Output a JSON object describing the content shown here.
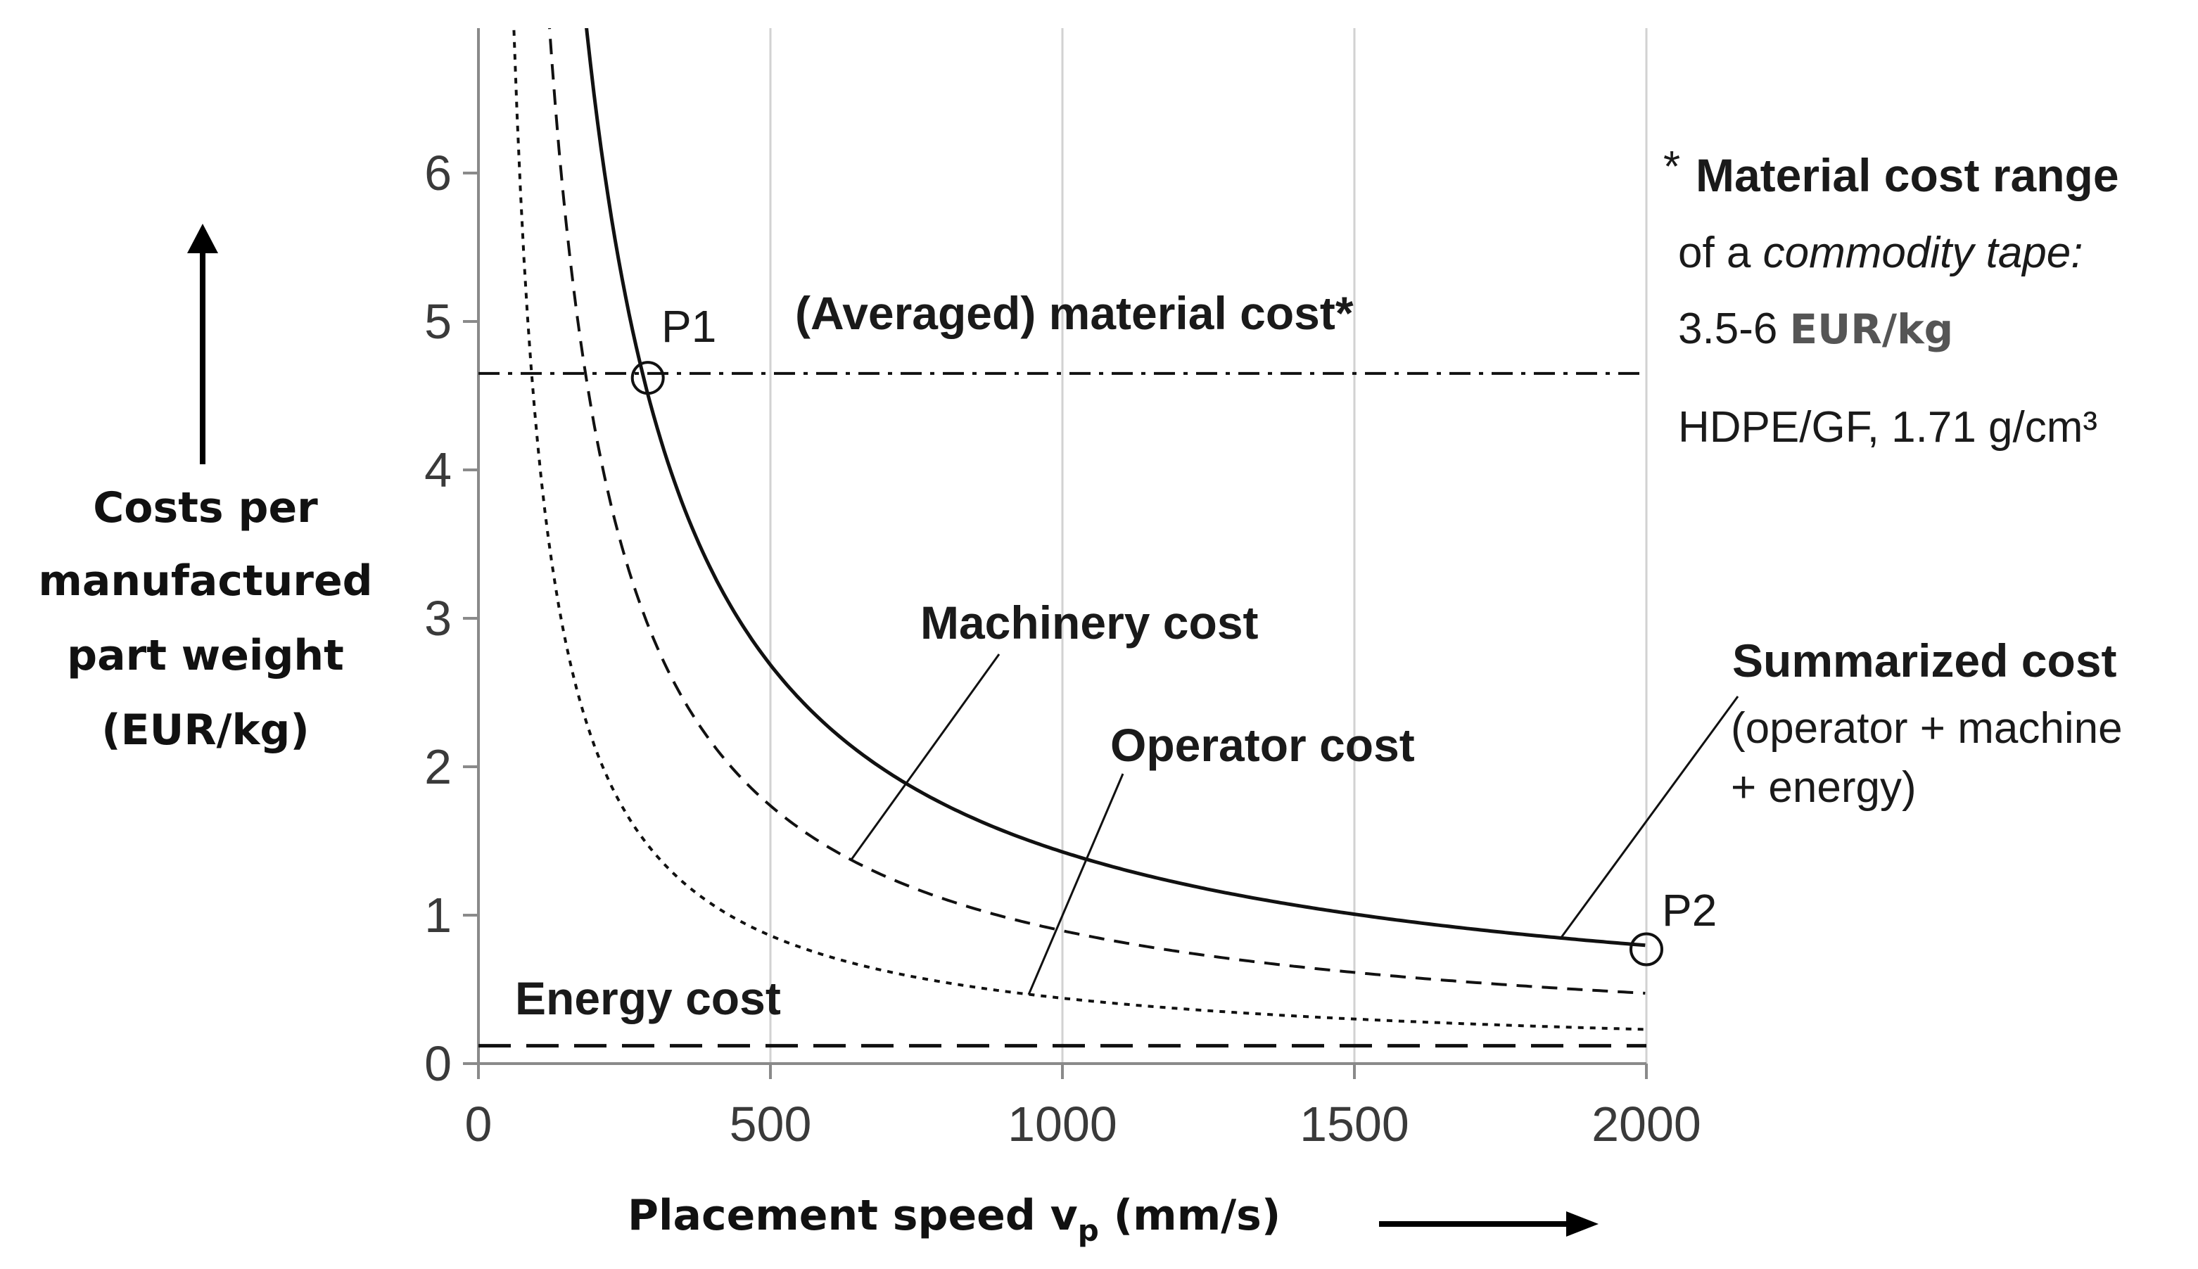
{
  "chart_data": {
    "type": "line",
    "xlabel": "Placement speed v",
    "xlabel_sub": "p",
    "xlabel_unit": " (mm/s)",
    "ylabel_lines": [
      "Costs per",
      "manufactured",
      "part weight",
      "(EUR/kg)"
    ],
    "xlim": [
      0,
      2000
    ],
    "ylim": [
      0,
      6.8
    ],
    "x_ticks": [
      0,
      500,
      1000,
      1500,
      2000
    ],
    "x_tick_labels": [
      "0",
      "500",
      "1000",
      "1500",
      "2000"
    ],
    "y_ticks": [
      0,
      1,
      2,
      3,
      4,
      5,
      6
    ],
    "y_tick_labels": [
      "0",
      "1",
      "2",
      "3",
      "4",
      "5",
      "6"
    ],
    "grid": "vertical",
    "series": [
      {
        "name": "Summarized cost",
        "style": "solid",
        "x": [
          180,
          290,
          500,
          750,
          1000,
          1500,
          2000
        ],
        "y": [
          7.1,
          4.62,
          2.7,
          1.85,
          1.42,
          0.98,
          0.77
        ]
      },
      {
        "name": "Machinery cost",
        "style": "dashed",
        "x": [
          120,
          200,
          500,
          640,
          1000,
          1500,
          2000
        ],
        "y": [
          7.0,
          4.4,
          1.73,
          1.37,
          0.88,
          0.6,
          0.45
        ]
      },
      {
        "name": "Operator cost",
        "style": "dotted",
        "x": [
          60,
          100,
          200,
          500,
          950,
          1500,
          2000
        ],
        "y": [
          7.0,
          4.3,
          2.15,
          0.85,
          0.45,
          0.29,
          0.22
        ]
      },
      {
        "name": "Energy cost",
        "style": "long-dash",
        "x": [
          0,
          2000
        ],
        "y": [
          0.12,
          0.12
        ]
      },
      {
        "name": "(Averaged) material cost*",
        "style": "dash-dot",
        "x": [
          0,
          2000
        ],
        "y": [
          4.65,
          4.65
        ]
      }
    ],
    "points": [
      {
        "name": "P1",
        "x": 290,
        "y": 4.62
      },
      {
        "name": "P2",
        "x": 2000,
        "y": 0.77
      }
    ],
    "annotations": {
      "material": "(Averaged) material cost*",
      "machinery": "Machinery cost",
      "operator": "Operator cost",
      "energy": "Energy cost",
      "summarized_title": "Summarized cost",
      "summarized_line1": "(operator + machine",
      "summarized_line2": "+ energy)",
      "note_star": "*",
      "note_title": "Material cost range",
      "note_line2_prefix": "of a ",
      "note_line2_italic": "commodity tape:",
      "note_line3_range": "3.5-6 ",
      "note_line3_unit": "EUR/kg",
      "note_line4": "HDPE/GF, 1.71 g/cm³"
    }
  }
}
